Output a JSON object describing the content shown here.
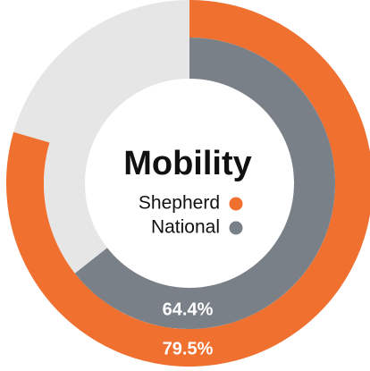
{
  "chart_data": {
    "type": "donut",
    "title": "Mobility",
    "track_color": "#e6e6e6",
    "max": 100,
    "series": [
      {
        "name": "Shepherd",
        "color": "#f07030",
        "values": [
          79.5
        ],
        "value_labels": [
          "79.5%"
        ]
      },
      {
        "name": "National",
        "color": "#7a8088",
        "values": [
          64.4
        ],
        "value_labels": [
          "64.4%"
        ]
      }
    ]
  }
}
